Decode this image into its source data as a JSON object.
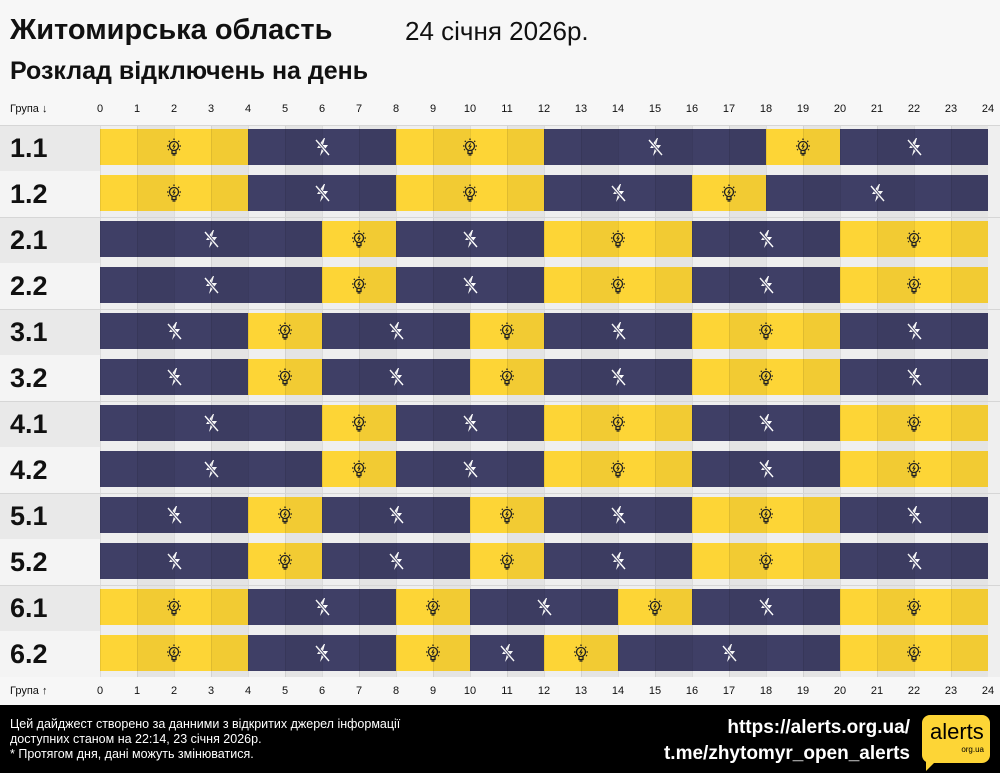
{
  "header": {
    "title": "Житомирська область",
    "date": "24 січня 2026р.",
    "subtitle": "Розклад відключень на день"
  },
  "axis": {
    "top_label": "Група ↓",
    "bottom_label": "Група ↑",
    "ticks": [
      "0",
      "1",
      "2",
      "3",
      "4",
      "5",
      "6",
      "7",
      "8",
      "9",
      "10",
      "11",
      "12",
      "13",
      "14",
      "15",
      "16",
      "17",
      "18",
      "19",
      "20",
      "21",
      "22",
      "23",
      "24"
    ]
  },
  "colors": {
    "power_on": "#fdd536",
    "power_off": "#3f3f66"
  },
  "icons": {
    "on": "lightbulb-icon",
    "off": "power-off-icon"
  },
  "groups": [
    {
      "name": "1.1",
      "schedule": [
        [
          "on",
          0,
          4
        ],
        [
          "off",
          4,
          8
        ],
        [
          "on",
          8,
          12
        ],
        [
          "off",
          12,
          18
        ],
        [
          "on",
          18,
          20
        ],
        [
          "off",
          20,
          24
        ]
      ]
    },
    {
      "name": "1.2",
      "schedule": [
        [
          "on",
          0,
          4
        ],
        [
          "off",
          4,
          8
        ],
        [
          "on",
          8,
          12
        ],
        [
          "off",
          12,
          16
        ],
        [
          "on",
          16,
          18
        ],
        [
          "off",
          18,
          24
        ]
      ]
    },
    {
      "name": "2.1",
      "schedule": [
        [
          "off",
          0,
          6
        ],
        [
          "on",
          6,
          8
        ],
        [
          "off",
          8,
          12
        ],
        [
          "on",
          12,
          16
        ],
        [
          "off",
          16,
          20
        ],
        [
          "on",
          20,
          24
        ]
      ]
    },
    {
      "name": "2.2",
      "schedule": [
        [
          "off",
          0,
          6
        ],
        [
          "on",
          6,
          8
        ],
        [
          "off",
          8,
          12
        ],
        [
          "on",
          12,
          16
        ],
        [
          "off",
          16,
          20
        ],
        [
          "on",
          20,
          24
        ]
      ]
    },
    {
      "name": "3.1",
      "schedule": [
        [
          "off",
          0,
          4
        ],
        [
          "on",
          4,
          6
        ],
        [
          "off",
          6,
          10
        ],
        [
          "on",
          10,
          12
        ],
        [
          "off",
          12,
          16
        ],
        [
          "on",
          16,
          20
        ],
        [
          "off",
          20,
          24
        ]
      ]
    },
    {
      "name": "3.2",
      "schedule": [
        [
          "off",
          0,
          4
        ],
        [
          "on",
          4,
          6
        ],
        [
          "off",
          6,
          10
        ],
        [
          "on",
          10,
          12
        ],
        [
          "off",
          12,
          16
        ],
        [
          "on",
          16,
          20
        ],
        [
          "off",
          20,
          24
        ]
      ]
    },
    {
      "name": "4.1",
      "schedule": [
        [
          "off",
          0,
          6
        ],
        [
          "on",
          6,
          8
        ],
        [
          "off",
          8,
          12
        ],
        [
          "on",
          12,
          16
        ],
        [
          "off",
          16,
          20
        ],
        [
          "on",
          20,
          24
        ]
      ]
    },
    {
      "name": "4.2",
      "schedule": [
        [
          "off",
          0,
          6
        ],
        [
          "on",
          6,
          8
        ],
        [
          "off",
          8,
          12
        ],
        [
          "on",
          12,
          16
        ],
        [
          "off",
          16,
          20
        ],
        [
          "on",
          20,
          24
        ]
      ]
    },
    {
      "name": "5.1",
      "schedule": [
        [
          "off",
          0,
          4
        ],
        [
          "on",
          4,
          6
        ],
        [
          "off",
          6,
          10
        ],
        [
          "on",
          10,
          12
        ],
        [
          "off",
          12,
          16
        ],
        [
          "on",
          16,
          20
        ],
        [
          "off",
          20,
          24
        ]
      ]
    },
    {
      "name": "5.2",
      "schedule": [
        [
          "off",
          0,
          4
        ],
        [
          "on",
          4,
          6
        ],
        [
          "off",
          6,
          10
        ],
        [
          "on",
          10,
          12
        ],
        [
          "off",
          12,
          16
        ],
        [
          "on",
          16,
          20
        ],
        [
          "off",
          20,
          24
        ]
      ]
    },
    {
      "name": "6.1",
      "schedule": [
        [
          "on",
          0,
          4
        ],
        [
          "off",
          4,
          8
        ],
        [
          "on",
          8,
          10
        ],
        [
          "off",
          10,
          14
        ],
        [
          "on",
          14,
          16
        ],
        [
          "off",
          16,
          20
        ],
        [
          "on",
          20,
          24
        ]
      ]
    },
    {
      "name": "6.2",
      "schedule": [
        [
          "on",
          0,
          4
        ],
        [
          "off",
          4,
          8
        ],
        [
          "on",
          8,
          10
        ],
        [
          "off",
          10,
          12
        ],
        [
          "on",
          12,
          14
        ],
        [
          "off",
          14,
          20
        ],
        [
          "on",
          20,
          24
        ]
      ]
    }
  ],
  "footer": {
    "note_line1": "Цей дайджест створено за данними з відкритих джерел інформації",
    "note_line2": "доступних станом на 22:14, 23 січня 2026р.",
    "note_line3": "* Протягом дня, дані можуть змінюватися.",
    "link1": "https://alerts.org.ua/",
    "link2": "t.me/zhytomyr_open_alerts",
    "logo_text": "alerts",
    "logo_sub": "org.ua"
  }
}
